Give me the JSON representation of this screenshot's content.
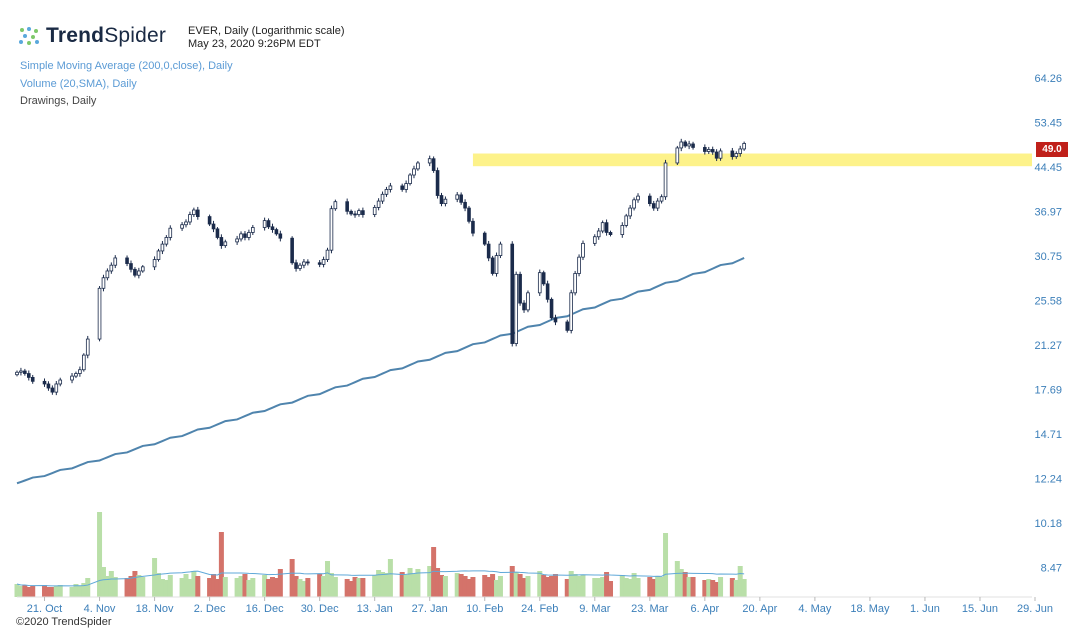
{
  "brand": {
    "name_bold": "Trend",
    "name_light": "Spider",
    "icon": "spider-dots-icon"
  },
  "meta": {
    "title": "EVER, Daily (Logarithmic scale)",
    "datetime": "May 23, 2020 9:26PM EDT"
  },
  "indicators": {
    "sma": "Simple Moving Average (200,0,close), Daily",
    "volume": "Volume (20,SMA), Daily",
    "drawings": "Drawings, Daily"
  },
  "copyright": "©2020 TrendSpider",
  "colors": {
    "candle": "#1b2b4b",
    "sma": "#4f84ad",
    "zone": "#fdf28a",
    "vol_up": "#b9dfa8",
    "vol_down": "#d4736a",
    "vol_sma": "#5fa8d8",
    "axis_text": "#3c7fb9",
    "price_tag": "#c0201a"
  },
  "chart_data": {
    "type": "candlestick",
    "scale": "log",
    "last_price": "49.0",
    "y_ticks": [
      "64.26",
      "53.45",
      "44.45",
      "36.97",
      "30.75",
      "25.58",
      "21.27",
      "17.69",
      "14.71",
      "12.24",
      "10.18",
      "8.47"
    ],
    "x_ticks": [
      "21. Oct",
      "4. Nov",
      "18. Nov",
      "2. Dec",
      "16. Dec",
      "30. Dec",
      "13. Jan",
      "27. Jan",
      "10. Feb",
      "24. Feb",
      "9. Mar",
      "23. Mar",
      "6. Apr",
      "20. Apr",
      "4. May",
      "18. May",
      "1. Jun",
      "15. Jun",
      "29. Jun"
    ],
    "resistance_zone": {
      "low": 44.6,
      "high": 47.0,
      "from": "2020-02-07",
      "to": "2020-06-29"
    },
    "closes": [
      19.0,
      19.1,
      18.9,
      18.6,
      18.3,
      18.1,
      17.8,
      17.5,
      18.1,
      18.4,
      18.7,
      18.9,
      19.2,
      20.4,
      21.8,
      26.9,
      28.1,
      28.9,
      29.6,
      30.5,
      29.8,
      29.1,
      28.4,
      28.9,
      29.4,
      30.3,
      31.4,
      32.3,
      33.2,
      34.5,
      35.0,
      35.4,
      36.5,
      37.2,
      36.2,
      35.1,
      34.4,
      33.2,
      32.1,
      32.6,
      33.0,
      33.7,
      33.2,
      33.9,
      34.6,
      35.6,
      34.7,
      34.3,
      33.7,
      33.1,
      29.9,
      29.2,
      29.6,
      30.0,
      29.9,
      29.7,
      30.3,
      31.5,
      37.4,
      38.5,
      37.0,
      36.6,
      36.5,
      37.1,
      36.5,
      37.6,
      38.6,
      39.7,
      40.5,
      41.1,
      40.5,
      41.5,
      43.0,
      44.1,
      45.2,
      46.0,
      43.8,
      39.5,
      38.2,
      38.9,
      39.6,
      38.4,
      37.5,
      35.5,
      33.8,
      32.3,
      30.5,
      28.6,
      30.8,
      32.3,
      21.4,
      28.5,
      25.3,
      24.6,
      26.4,
      28.7,
      27.4,
      25.7,
      23.8,
      23.4,
      22.6,
      26.4,
      28.6,
      30.6,
      32.4,
      33.3,
      34.1,
      35.3,
      33.9,
      33.6,
      34.9,
      36.3,
      37.5,
      38.8,
      39.4,
      38.2,
      37.5,
      38.6,
      39.3,
      45.2,
      48.1,
      49.3,
      48.5,
      48.9,
      48.2,
      47.4,
      47.8,
      47.3,
      46.1,
      47.5,
      46.4,
      47.0,
      47.9,
      49.0
    ],
    "volume": [
      1.3,
      1.1,
      1.2,
      1.0,
      1.1,
      1.2,
      1.0,
      1.0,
      1.1,
      1.2,
      1.0,
      1.3,
      1.1,
      1.4,
      1.9,
      8.5,
      3.0,
      2.1,
      2.6,
      2.0,
      1.9,
      2.1,
      2.6,
      2.2,
      2.0,
      3.9,
      2.4,
      1.8,
      1.7,
      2.2,
      1.9,
      2.3,
      1.8,
      2.6,
      2.1,
      1.9,
      2.3,
      1.8,
      6.5,
      2.0,
      1.9,
      2.1,
      2.3,
      1.7,
      1.9,
      2.2,
      1.8,
      2.0,
      1.9,
      2.8,
      3.8,
      2.1,
      1.8,
      1.6,
      1.9,
      2.3,
      2.1,
      3.6,
      2.4,
      2.0,
      1.8,
      1.6,
      2.0,
      1.9,
      1.9,
      2.2,
      2.7,
      2.5,
      2.4,
      3.8,
      2.5,
      2.2,
      2.9,
      2.3,
      2.8,
      3.1,
      5.0,
      2.9,
      2.2,
      2.1,
      2.4,
      2.3,
      2.1,
      1.8,
      2.0,
      2.2,
      2.0,
      2.3,
      1.7,
      2.1,
      3.1,
      2.5,
      2.3,
      1.9,
      2.1,
      2.6,
      2.2,
      2.0,
      2.1,
      2.3,
      1.8,
      2.6,
      2.3,
      2.1,
      2.2,
      1.9,
      1.9,
      2.0,
      2.5,
      1.6,
      2.2,
      1.9,
      1.8,
      2.4,
      1.9,
      2.0,
      1.8,
      2.1,
      2.0,
      6.4,
      3.6,
      2.8,
      2.5,
      2.0,
      2.0,
      1.7,
      1.8,
      1.7,
      1.5,
      2.0,
      1.9,
      1.7,
      3.1,
      1.8
    ]
  }
}
